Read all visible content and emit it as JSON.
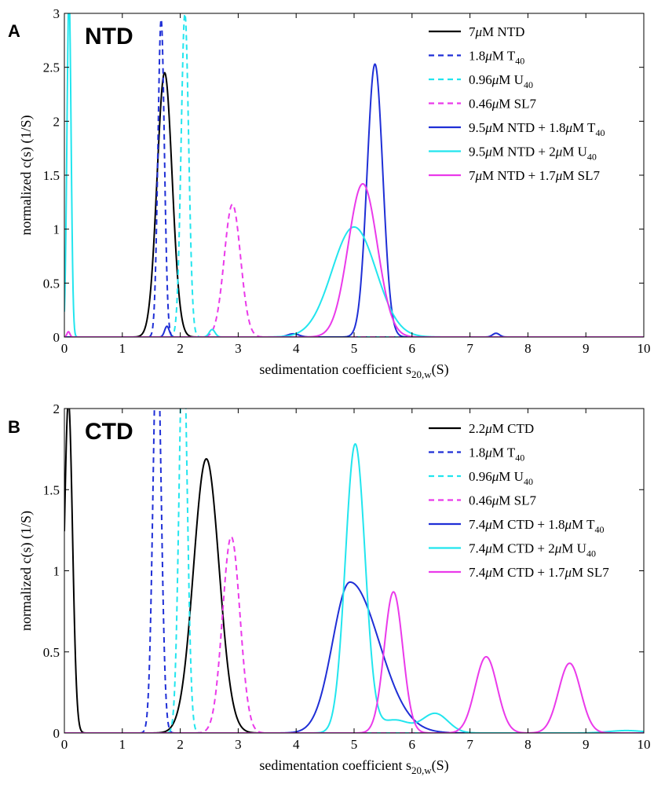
{
  "chart_data": [
    {
      "type": "line",
      "panel_letter": "A",
      "panel_title": "NTD",
      "xlabel": "sedimentation coefficient s",
      "xlabel_sub": "20,w",
      "xlabel_unit": "(S)",
      "ylabel": "normalized c(s) (1/S)",
      "xlim": [
        0,
        10
      ],
      "ylim": [
        0,
        3
      ],
      "xticks": [
        0,
        1,
        2,
        3,
        4,
        5,
        6,
        7,
        8,
        9,
        10
      ],
      "yticks": [
        0,
        0.5,
        1,
        1.5,
        2,
        2.5,
        3
      ],
      "ytick_labels": [
        "0",
        "0.5",
        "1",
        "1.5",
        "2",
        "2.5",
        "3"
      ],
      "grid": false,
      "legend_position": "top-right",
      "series": [
        {
          "name": "7μM NTD",
          "legend": [
            {
              "t": "7"
            },
            {
              "t": "μ",
              "i": true
            },
            {
              "t": "M NTD"
            }
          ],
          "color": "#000000",
          "dashed": false,
          "peaks": [
            {
              "mu": 1.73,
              "sigma": 0.13,
              "h": 2.45
            }
          ]
        },
        {
          "name": "1.8μM T40",
          "legend": [
            {
              "t": "1.8"
            },
            {
              "t": "μ",
              "i": true
            },
            {
              "t": "M T"
            },
            {
              "t": "40",
              "sub": true
            }
          ],
          "color": "#1f2fd6",
          "dashed": true,
          "peaks": [
            {
              "mu": 1.67,
              "sigma": 0.055,
              "h": 2.95
            }
          ]
        },
        {
          "name": "0.96μM U40",
          "legend": [
            {
              "t": "0.96"
            },
            {
              "t": "μ",
              "i": true
            },
            {
              "t": "M U"
            },
            {
              "t": "40",
              "sub": true
            }
          ],
          "color": "#22e5ee",
          "dashed": true,
          "peaks": [
            {
              "mu": 2.08,
              "sigma": 0.065,
              "h": 3.0
            }
          ]
        },
        {
          "name": "0.46μM SL7",
          "legend": [
            {
              "t": "0.46"
            },
            {
              "t": "μ",
              "i": true
            },
            {
              "t": "M SL7"
            }
          ],
          "color": "#ea3aea",
          "dashed": true,
          "peaks": [
            {
              "mu": 2.9,
              "sigma": 0.14,
              "h": 1.23
            }
          ]
        },
        {
          "name": "9.5μM NTD + 1.8μM T40",
          "legend": [
            {
              "t": "9.5"
            },
            {
              "t": "μ",
              "i": true
            },
            {
              "t": "M NTD + 1.8"
            },
            {
              "t": "μ",
              "i": true
            },
            {
              "t": "M T"
            },
            {
              "t": "40",
              "sub": true
            }
          ],
          "color": "#1f2fd6",
          "dashed": false,
          "peaks": [
            {
              "mu": 5.36,
              "sigma": 0.135,
              "h": 2.53
            },
            {
              "mu": 1.77,
              "sigma": 0.04,
              "h": 0.1
            },
            {
              "mu": 3.95,
              "sigma": 0.1,
              "h": 0.03
            },
            {
              "mu": 7.45,
              "sigma": 0.06,
              "h": 0.035
            }
          ]
        },
        {
          "name": "9.5μM NTD + 2μM U40",
          "legend": [
            {
              "t": "9.5"
            },
            {
              "t": "μ",
              "i": true
            },
            {
              "t": "M NTD + 2"
            },
            {
              "t": "μ",
              "i": true
            },
            {
              "t": "M U"
            },
            {
              "t": "40",
              "sub": true
            }
          ],
          "color": "#22e5ee",
          "dashed": false,
          "peaks": [
            {
              "mu": 0.08,
              "sigma": 0.035,
              "h": 3.2
            },
            {
              "mu": 2.55,
              "sigma": 0.05,
              "h": 0.07
            },
            {
              "mu": 5.0,
              "sigma": 0.38,
              "h": 1.02
            }
          ]
        },
        {
          "name": "7μM NTD + 1.7μM SL7",
          "legend": [
            {
              "t": "7"
            },
            {
              "t": "μ",
              "i": true
            },
            {
              "t": "M NTD + 1.7"
            },
            {
              "t": "μ",
              "i": true
            },
            {
              "t": "M SL7"
            }
          ],
          "color": "#ea3aea",
          "dashed": false,
          "peaks": [
            {
              "mu": 0.07,
              "sigma": 0.025,
              "h": 0.05
            },
            {
              "mu": 5.15,
              "sigma": 0.25,
              "h": 1.42
            }
          ]
        }
      ]
    },
    {
      "type": "line",
      "panel_letter": "B",
      "panel_title": "CTD",
      "xlabel": "sedimentation coefficient s",
      "xlabel_sub": "20,w",
      "xlabel_unit": "(S)",
      "ylabel": "normalized c(s) (1/S)",
      "xlim": [
        0,
        10
      ],
      "ylim": [
        0,
        2
      ],
      "xticks": [
        0,
        1,
        2,
        3,
        4,
        5,
        6,
        7,
        8,
        9,
        10
      ],
      "yticks": [
        0,
        0.5,
        1,
        1.5,
        2
      ],
      "ytick_labels": [
        "0",
        "0.5",
        "1",
        "1.5",
        "2"
      ],
      "grid": false,
      "legend_position": "top-right",
      "series": [
        {
          "name": "2.2μM CTD",
          "legend": [
            {
              "t": "2.2"
            },
            {
              "t": "μ",
              "i": true
            },
            {
              "t": "M CTD"
            }
          ],
          "color": "#000000",
          "dashed": false,
          "peaks": [
            {
              "mu": 0.07,
              "sigma": 0.07,
              "h": 2.05
            },
            {
              "mu": 2.45,
              "sigma": 0.22,
              "h": 1.69
            }
          ]
        },
        {
          "name": "1.8μM T40",
          "legend": [
            {
              "t": "1.8"
            },
            {
              "t": "μ",
              "i": true
            },
            {
              "t": "M T"
            },
            {
              "t": "40",
              "sub": true
            }
          ],
          "color": "#1f2fd6",
          "dashed": true,
          "peaks": [
            {
              "mu": 1.6,
              "sigma": 0.07,
              "h": 2.5
            }
          ]
        },
        {
          "name": "0.96μM U40",
          "legend": [
            {
              "t": "0.96"
            },
            {
              "t": "μ",
              "i": true
            },
            {
              "t": "M U"
            },
            {
              "t": "40",
              "sub": true
            }
          ],
          "color": "#22e5ee",
          "dashed": true,
          "peaks": [
            {
              "mu": 2.05,
              "sigma": 0.07,
              "h": 2.5
            }
          ]
        },
        {
          "name": "0.46μM SL7",
          "legend": [
            {
              "t": "0.46"
            },
            {
              "t": "μ",
              "i": true
            },
            {
              "t": "M SL7"
            }
          ],
          "color": "#ea3aea",
          "dashed": true,
          "peaks": [
            {
              "mu": 2.88,
              "sigma": 0.15,
              "h": 1.21
            }
          ]
        },
        {
          "name": "7.4μM CTD + 1.8μM T40",
          "legend": [
            {
              "t": "7.4"
            },
            {
              "t": "μ",
              "i": true
            },
            {
              "t": "M CTD + 1.8"
            },
            {
              "t": "μ",
              "i": true
            },
            {
              "t": "M T"
            },
            {
              "t": "40",
              "sub": true
            }
          ],
          "color": "#1f2fd6",
          "dashed": false,
          "peaks": [
            {
              "mu": 4.93,
              "sigma": 0.3,
              "h": 0.93,
              "sigma_right": 0.5
            }
          ]
        },
        {
          "name": "7.4μM CTD + 2μM U40",
          "legend": [
            {
              "t": "7.4"
            },
            {
              "t": "μ",
              "i": true
            },
            {
              "t": "M CTD + 2"
            },
            {
              "t": "μ",
              "i": true
            },
            {
              "t": "M U"
            },
            {
              "t": "40",
              "sub": true
            }
          ],
          "color": "#22e5ee",
          "dashed": false,
          "peaks": [
            {
              "mu": 5.02,
              "sigma": 0.17,
              "h": 1.78
            },
            {
              "mu": 6.4,
              "sigma": 0.22,
              "h": 0.12
            },
            {
              "mu": 5.7,
              "sigma": 0.25,
              "h": 0.08
            },
            {
              "mu": 9.7,
              "sigma": 0.3,
              "h": 0.015
            }
          ]
        },
        {
          "name": "7.4μM CTD + 1.7μM SL7",
          "legend": [
            {
              "t": "7.4"
            },
            {
              "t": "μ",
              "i": true
            },
            {
              "t": "M CTD + 1.7"
            },
            {
              "t": "μ",
              "i": true
            },
            {
              "t": "M SL7"
            }
          ],
          "color": "#ea3aea",
          "dashed": false,
          "peaks": [
            {
              "mu": 5.68,
              "sigma": 0.16,
              "h": 0.87
            },
            {
              "mu": 7.28,
              "sigma": 0.19,
              "h": 0.47
            },
            {
              "mu": 8.72,
              "sigma": 0.19,
              "h": 0.43
            }
          ]
        }
      ]
    }
  ]
}
